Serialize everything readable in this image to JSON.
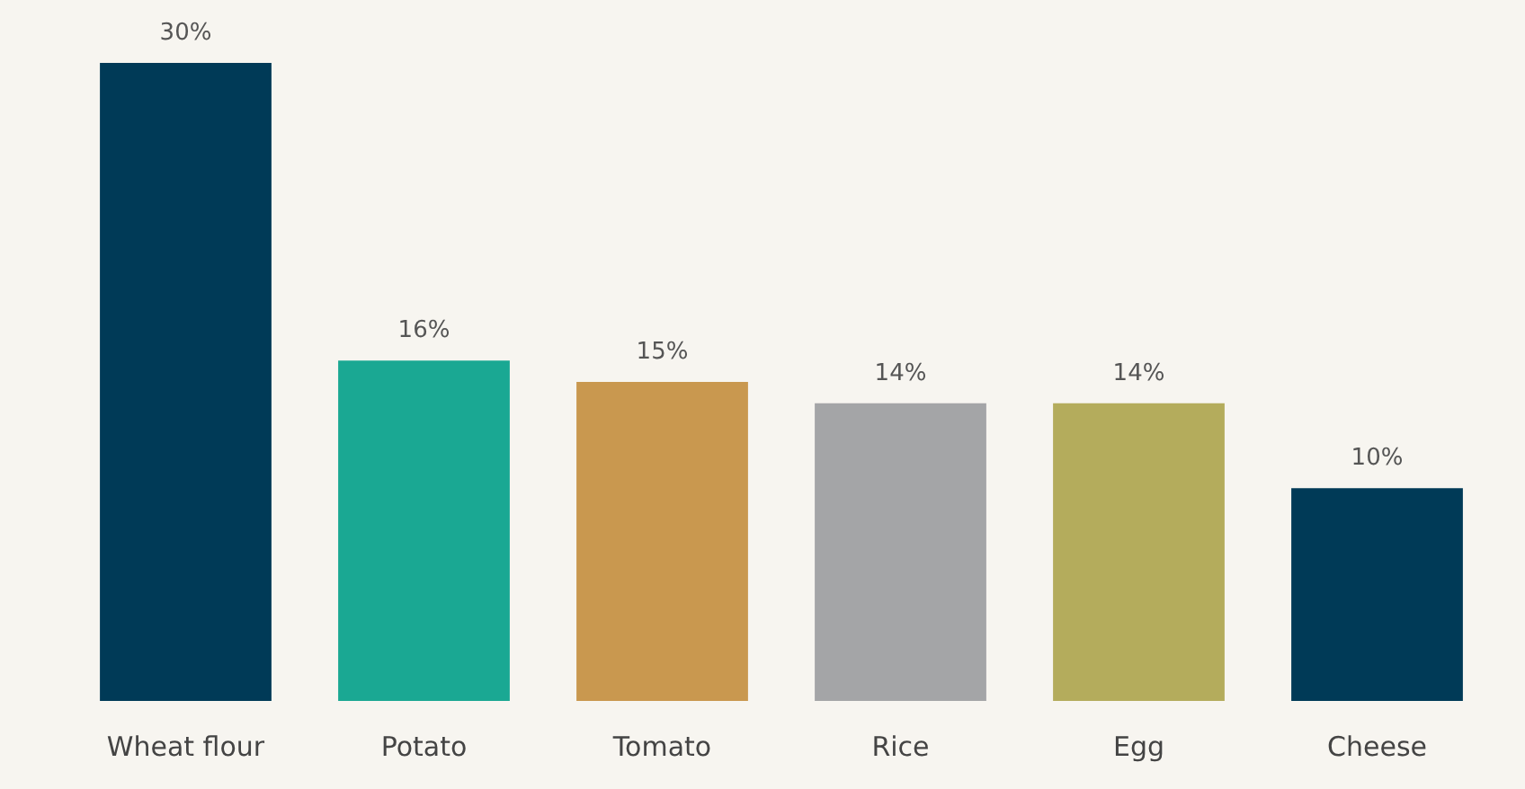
{
  "chart_data": {
    "type": "bar",
    "categories": [
      "Wheat flour",
      "Potato",
      "Tomato",
      "Rice",
      "Egg",
      "Cheese"
    ],
    "values": [
      30,
      16,
      15,
      14,
      14,
      10
    ],
    "colors": [
      "#003a57",
      "#1aa893",
      "#c9984f",
      "#a4a5a7",
      "#b4ac5c",
      "#003a57"
    ],
    "value_labels": [
      "30%",
      "16%",
      "15%",
      "14%",
      "14%",
      "10%"
    ]
  }
}
